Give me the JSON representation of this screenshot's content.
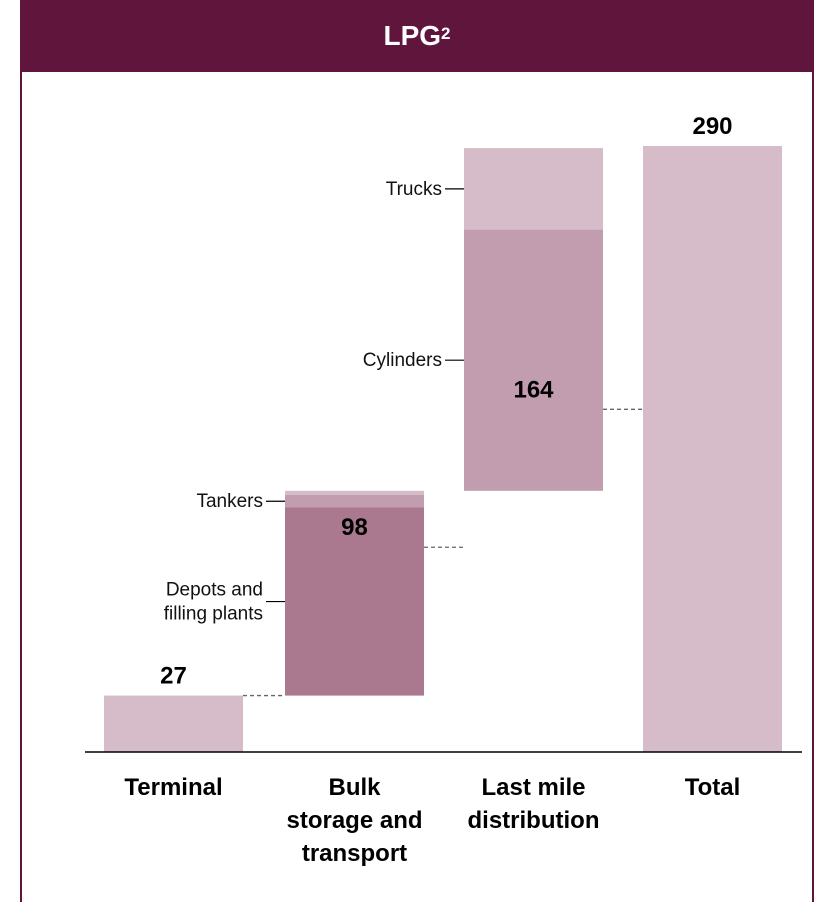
{
  "chart_data": {
    "type": "bar",
    "title": "LPG",
    "title_superscript": "2",
    "categories": [
      "Terminal",
      "Bulk storage and transport",
      "Last mile distribution",
      "Total"
    ],
    "category_lines": [
      [
        "Terminal"
      ],
      [
        "Bulk",
        "storage and",
        "transport"
      ],
      [
        "Last mile",
        "distribution"
      ],
      [
        "Total"
      ]
    ],
    "totals": [
      27,
      98,
      164,
      290
    ],
    "total_labels": [
      "27",
      "98",
      "164",
      "290"
    ],
    "segments": [
      [
        {
          "name": "",
          "start": 0,
          "end": 27,
          "color": "#d6bcc8"
        }
      ],
      [
        {
          "name": "Depots and filling plants",
          "lines": [
            "Depots and",
            "filling plants"
          ],
          "start": 27,
          "end": 117,
          "color": "#aa788f"
        },
        {
          "name": "Tankers",
          "lines": [
            "Tankers"
          ],
          "start": 117,
          "end": 123,
          "color": "#c29db0"
        },
        {
          "name": "",
          "lines": [],
          "start": 123,
          "end": 125,
          "color": "#d6bcc8"
        }
      ],
      [
        {
          "name": "Cylinders",
          "lines": [
            "Cylinders"
          ],
          "start": 125,
          "end": 250,
          "color": "#c29db0"
        },
        {
          "name": "Trucks",
          "lines": [
            "Trucks"
          ],
          "start": 250,
          "end": 289,
          "color": "#d6bcc8"
        }
      ],
      [
        {
          "name": "",
          "start": 0,
          "end": 290,
          "color": "#d6bcc8"
        }
      ]
    ],
    "ylim": [
      0,
      290
    ],
    "grid": false,
    "legend": "none"
  }
}
